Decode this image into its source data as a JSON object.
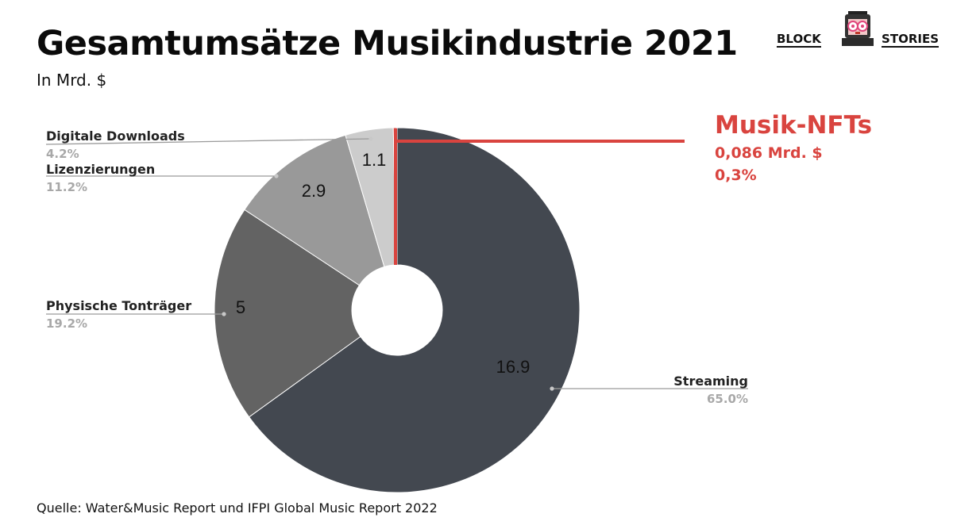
{
  "title": "Gesamtumsätze Musikindustrie 2021",
  "subtitle": "In Mrd. $",
  "source": "Quelle: Water&Music Report und IFPI Global Music Report 2022",
  "logo": {
    "word_left": "BLOCK",
    "word_right": "STORIES"
  },
  "highlight": {
    "title": "Musik-NFTs",
    "value": "0,086 Mrd. $",
    "percent": "0,3%",
    "color": "#d9443f"
  },
  "chart_data": {
    "type": "pie",
    "style": "donut",
    "title": "Gesamtumsätze Musikindustrie 2021",
    "subtitle": "In Mrd. $",
    "slices": [
      {
        "name": "Streaming",
        "value": 16.9,
        "percent": "65.0%",
        "color": "#434850",
        "label_color": "#111111"
      },
      {
        "name": "Physische Tonträger",
        "value": 5,
        "percent": "19.2%",
        "color": "#636363",
        "label_color": "#111111"
      },
      {
        "name": "Lizenzierungen",
        "value": 2.9,
        "percent": "11.2%",
        "color": "#999999",
        "label_color": "#111111"
      },
      {
        "name": "Digitale Downloads",
        "value": 1.1,
        "percent": "4.2%",
        "color": "#cccccc",
        "label_color": "#111111"
      },
      {
        "name": "Musik-NFTs",
        "value": 0.086,
        "percent": "0,3%",
        "color": "#d9443f",
        "label_color": "#d9443f"
      }
    ]
  }
}
